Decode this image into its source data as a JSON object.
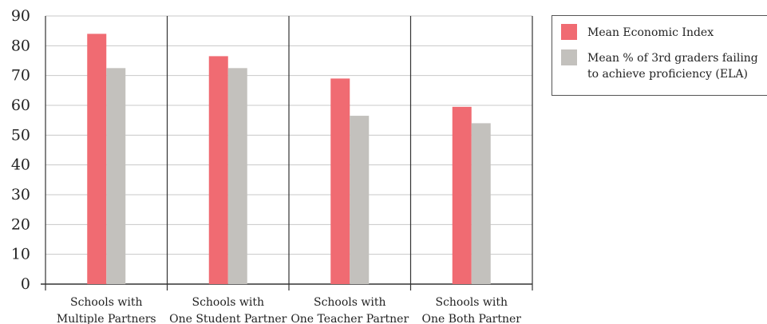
{
  "chart_data": {
    "type": "bar",
    "title": "",
    "xlabel": "",
    "ylabel": "",
    "ylim": [
      0,
      90
    ],
    "yticks": [
      0,
      10,
      20,
      30,
      40,
      50,
      60,
      70,
      80,
      90
    ],
    "grid": true,
    "legend_position": "top-right",
    "categories": [
      [
        "Schools with",
        "Multiple Partners"
      ],
      [
        "Schools with",
        "One Student Partner"
      ],
      [
        "Schools with",
        "One Teacher Partner"
      ],
      [
        "Schools with",
        "One Both Partner"
      ]
    ],
    "series": [
      {
        "name": "Mean Economic Index",
        "color": "#f06b72",
        "values": [
          84,
          76.5,
          69,
          59.5
        ]
      },
      {
        "name": "Mean % of 3rd graders failing to achieve proficiency (ELA)",
        "name_lines": [
          "Mean % of 3rd graders failing",
          "to achieve proficiency (ELA)"
        ],
        "color": "#c3c1bd",
        "values": [
          72.5,
          72.5,
          56.5,
          54
        ]
      }
    ]
  }
}
